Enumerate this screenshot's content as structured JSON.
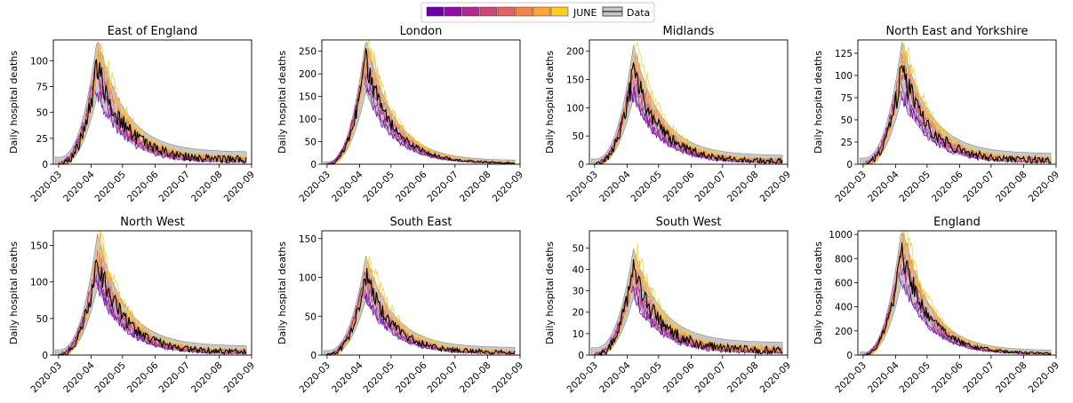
{
  "legend": {
    "items": [
      {
        "label": "JUNE",
        "kind": "colorbar"
      },
      {
        "label": "Data",
        "kind": "band",
        "fill": "#c8c8c8",
        "edge": "#555555"
      }
    ]
  },
  "colors": {
    "gradient": [
      "#6a00a8",
      "#8f0da4",
      "#b12a90",
      "#cc4778",
      "#e16462",
      "#f2844b",
      "#fca636",
      "#fcce25"
    ],
    "data_line": "#000000",
    "band_fill": "#c8c8c8",
    "band_edge": "#888888"
  },
  "chart_data": [
    {
      "type": "line",
      "title": "East of England",
      "ylabel": "Daily hospital deaths",
      "ylim": [
        0,
        120
      ],
      "yticks": [
        0,
        25,
        50,
        75,
        100
      ],
      "peak": 95,
      "tail": 4,
      "xlim": [
        "2020-02-25",
        "2020-09-01"
      ],
      "xticks": [
        "2020-03",
        "2020-04",
        "2020-05",
        "2020-06",
        "2020-07",
        "2020-08",
        "2020-09"
      ],
      "grid": false
    },
    {
      "type": "line",
      "title": "London",
      "ylabel": "Daily hospital deaths",
      "ylim": [
        0,
        275
      ],
      "yticks": [
        0,
        50,
        100,
        150,
        200,
        250
      ],
      "peak": 225,
      "tail": 2,
      "xlim": [
        "2020-02-25",
        "2020-09-01"
      ],
      "xticks": [
        "2020-03",
        "2020-04",
        "2020-05",
        "2020-06",
        "2020-07",
        "2020-08",
        "2020-09"
      ],
      "grid": false
    },
    {
      "type": "line",
      "title": "Midlands",
      "ylabel": "Daily hospital deaths",
      "ylim": [
        0,
        220
      ],
      "yticks": [
        0,
        50,
        100,
        150,
        200
      ],
      "peak": 165,
      "tail": 5,
      "xlim": [
        "2020-02-25",
        "2020-09-01"
      ],
      "xticks": [
        "2020-03",
        "2020-04",
        "2020-05",
        "2020-06",
        "2020-07",
        "2020-08",
        "2020-09"
      ],
      "grid": false
    },
    {
      "type": "line",
      "title": "North East and Yorkshire",
      "ylabel": "Daily hospital deaths",
      "ylim": [
        0,
        140
      ],
      "yticks": [
        0,
        25,
        50,
        75,
        100,
        125
      ],
      "peak": 108,
      "tail": 4,
      "xlim": [
        "2020-02-25",
        "2020-09-01"
      ],
      "xticks": [
        "2020-03",
        "2020-04",
        "2020-05",
        "2020-06",
        "2020-07",
        "2020-08",
        "2020-09"
      ],
      "grid": false
    },
    {
      "type": "line",
      "title": "North West",
      "ylabel": "Daily hospital deaths",
      "ylim": [
        0,
        170
      ],
      "yticks": [
        0,
        50,
        100,
        150
      ],
      "peak": 130,
      "tail": 4,
      "xlim": [
        "2020-02-25",
        "2020-09-01"
      ],
      "xticks": [
        "2020-03",
        "2020-04",
        "2020-05",
        "2020-06",
        "2020-07",
        "2020-08",
        "2020-09"
      ],
      "grid": false
    },
    {
      "type": "line",
      "title": "South East",
      "ylabel": "Daily hospital deaths",
      "ylim": [
        0,
        160
      ],
      "yticks": [
        0,
        50,
        100,
        150
      ],
      "peak": 100,
      "tail": 3,
      "xlim": [
        "2020-02-25",
        "2020-09-01"
      ],
      "xticks": [
        "2020-03",
        "2020-04",
        "2020-05",
        "2020-06",
        "2020-07",
        "2020-08",
        "2020-09"
      ],
      "grid": false
    },
    {
      "type": "line",
      "title": "South West",
      "ylabel": "Daily hospital deaths",
      "ylim": [
        0,
        58
      ],
      "yticks": [
        0,
        10,
        20,
        30,
        40,
        50
      ],
      "peak": 38,
      "tail": 2,
      "xlim": [
        "2020-02-25",
        "2020-09-01"
      ],
      "xticks": [
        "2020-03",
        "2020-04",
        "2020-05",
        "2020-06",
        "2020-07",
        "2020-08",
        "2020-09"
      ],
      "grid": false
    },
    {
      "type": "line",
      "title": "England",
      "ylabel": "Daily hospital deaths",
      "ylim": [
        0,
        1030
      ],
      "yticks": [
        0,
        200,
        400,
        600,
        800,
        1000
      ],
      "peak": 860,
      "tail": 10,
      "xlim": [
        "2020-02-25",
        "2020-09-01"
      ],
      "xticks": [
        "2020-03",
        "2020-04",
        "2020-05",
        "2020-06",
        "2020-07",
        "2020-08",
        "2020-09"
      ],
      "grid": false
    }
  ]
}
